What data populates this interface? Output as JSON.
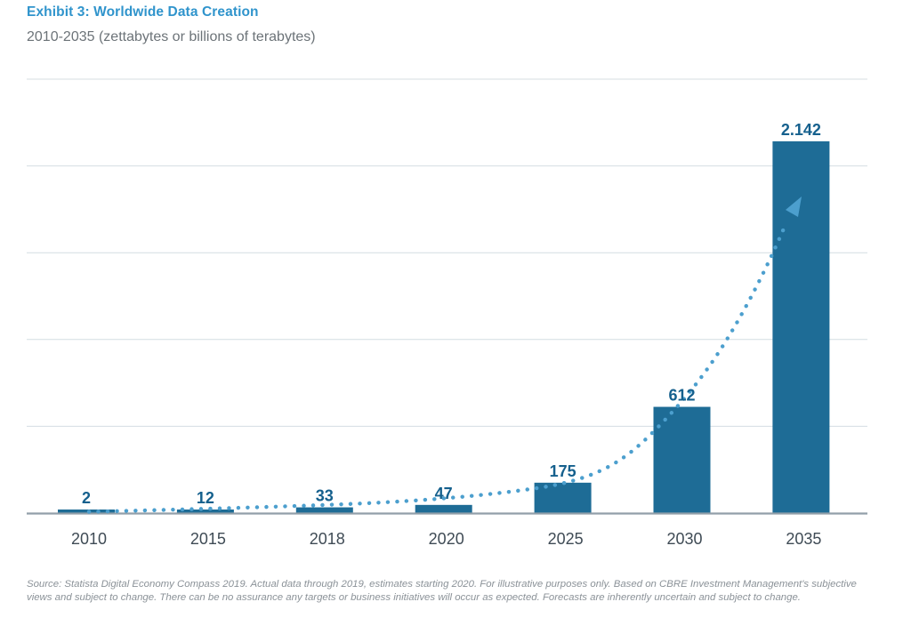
{
  "header": {
    "title": "Exhibit 3: Worldwide Data Creation",
    "subtitle": "2010-2035 (zettabytes or billions of terabytes)"
  },
  "chart_data": {
    "type": "bar",
    "title": "Exhibit 3: Worldwide Data Creation",
    "subtitle": "2010-2035 (zettabytes or billions of terabytes)",
    "unit": "zettabytes",
    "categories": [
      "2010",
      "2015",
      "2018",
      "2020",
      "2025",
      "2030",
      "2035"
    ],
    "values": [
      2,
      12,
      33,
      47,
      175,
      612,
      2142
    ],
    "value_labels": [
      "2",
      "12",
      "33",
      "47",
      "175",
      "612",
      "2.142"
    ],
    "xlabel": "",
    "ylabel": "",
    "ylim": [
      0,
      2500
    ],
    "gridline_values": [
      500,
      1000,
      1500,
      2000,
      2500
    ],
    "grid": "horizontal-only",
    "legend": "none",
    "y_axis_tick_labels": "none",
    "annotations": [
      "dotted exponential growth trend curve rising from the 2010 bar and ending in an upward-pointing arrowhead over the 2035 bar"
    ],
    "colors": {
      "bar": "#1E6C96",
      "value_label": "#15608D",
      "trend": "#4C9FCE",
      "gridline": "#D4DDE2",
      "axis": "#929FA9",
      "tick_label": "#3F4B55",
      "title": "#3094CC",
      "subtitle": "#6C7378",
      "source": "#8B9298"
    }
  },
  "footer": {
    "source": "Source: Statista Digital Economy Compass 2019. Actual data through 2019, estimates starting 2020. For illustrative purposes only. Based on CBRE Investment Management's subjective views and subject to change. There can be no assurance any targets or business initiatives will occur as expected. Forecasts are inherently uncertain and subject to change."
  }
}
